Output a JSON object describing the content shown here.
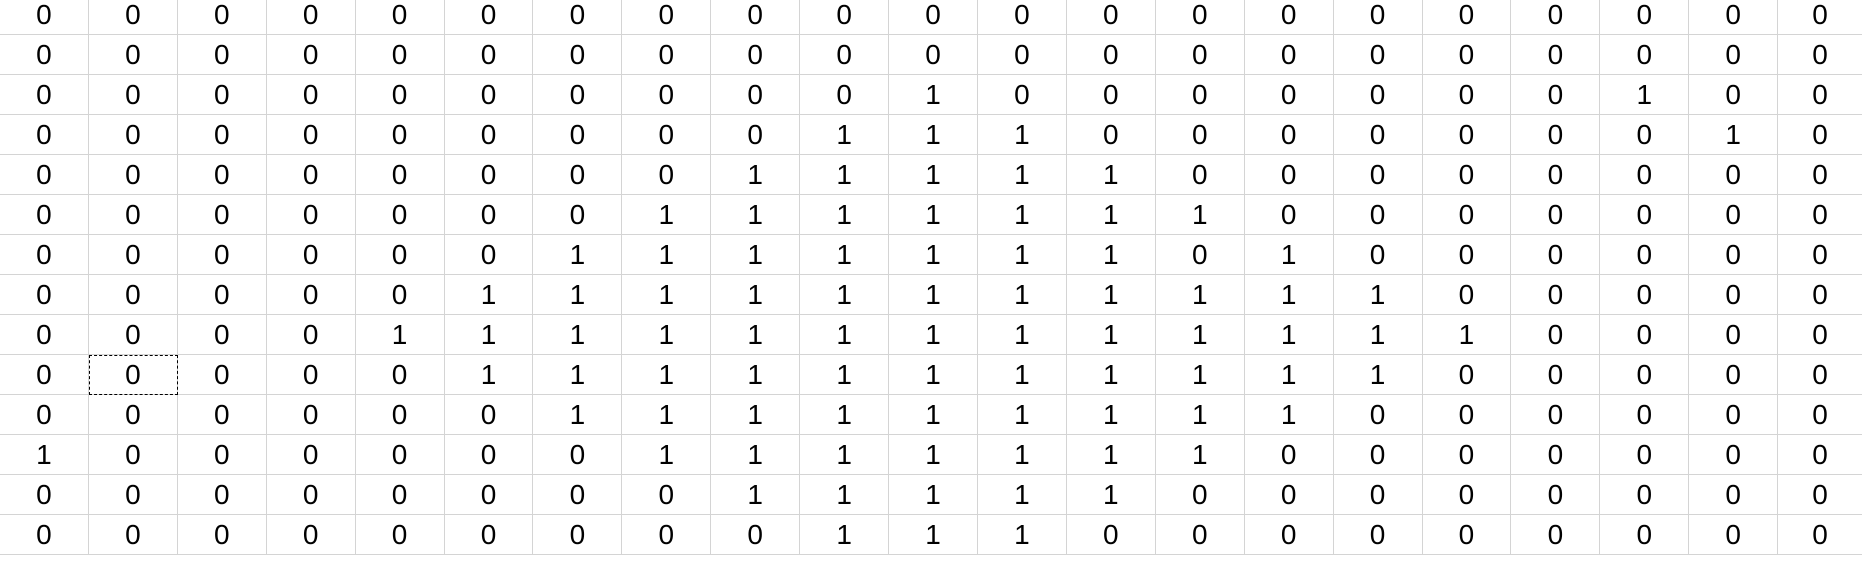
{
  "sheet": {
    "selected_cell": {
      "row": 9,
      "col": 1
    },
    "rows": [
      [
        "0",
        "0",
        "0",
        "0",
        "0",
        "0",
        "0",
        "0",
        "0",
        "0",
        "0",
        "0",
        "0",
        "0",
        "0",
        "0",
        "0",
        "0",
        "0",
        "0",
        "0"
      ],
      [
        "0",
        "0",
        "0",
        "0",
        "0",
        "0",
        "0",
        "0",
        "0",
        "0",
        "0",
        "0",
        "0",
        "0",
        "0",
        "0",
        "0",
        "0",
        "0",
        "0",
        "0"
      ],
      [
        "0",
        "0",
        "0",
        "0",
        "0",
        "0",
        "0",
        "0",
        "0",
        "0",
        "1",
        "0",
        "0",
        "0",
        "0",
        "0",
        "0",
        "0",
        "1",
        "0",
        "0"
      ],
      [
        "0",
        "0",
        "0",
        "0",
        "0",
        "0",
        "0",
        "0",
        "0",
        "1",
        "1",
        "1",
        "0",
        "0",
        "0",
        "0",
        "0",
        "0",
        "0",
        "1",
        "0"
      ],
      [
        "0",
        "0",
        "0",
        "0",
        "0",
        "0",
        "0",
        "0",
        "1",
        "1",
        "1",
        "1",
        "1",
        "0",
        "0",
        "0",
        "0",
        "0",
        "0",
        "0",
        "0"
      ],
      [
        "0",
        "0",
        "0",
        "0",
        "0",
        "0",
        "0",
        "1",
        "1",
        "1",
        "1",
        "1",
        "1",
        "1",
        "0",
        "0",
        "0",
        "0",
        "0",
        "0",
        "0"
      ],
      [
        "0",
        "0",
        "0",
        "0",
        "0",
        "0",
        "1",
        "1",
        "1",
        "1",
        "1",
        "1",
        "1",
        "0",
        "1",
        "0",
        "0",
        "0",
        "0",
        "0",
        "0"
      ],
      [
        "0",
        "0",
        "0",
        "0",
        "0",
        "1",
        "1",
        "1",
        "1",
        "1",
        "1",
        "1",
        "1",
        "1",
        "1",
        "1",
        "0",
        "0",
        "0",
        "0",
        "0"
      ],
      [
        "0",
        "0",
        "0",
        "0",
        "1",
        "1",
        "1",
        "1",
        "1",
        "1",
        "1",
        "1",
        "1",
        "1",
        "1",
        "1",
        "1",
        "0",
        "0",
        "0",
        "0"
      ],
      [
        "0",
        "0",
        "0",
        "0",
        "0",
        "1",
        "1",
        "1",
        "1",
        "1",
        "1",
        "1",
        "1",
        "1",
        "1",
        "1",
        "0",
        "0",
        "0",
        "0",
        "0"
      ],
      [
        "0",
        "0",
        "0",
        "0",
        "0",
        "0",
        "1",
        "1",
        "1",
        "1",
        "1",
        "1",
        "1",
        "1",
        "1",
        "0",
        "0",
        "0",
        "0",
        "0",
        "0"
      ],
      [
        "1",
        "0",
        "0",
        "0",
        "0",
        "0",
        "0",
        "1",
        "1",
        "1",
        "1",
        "1",
        "1",
        "1",
        "0",
        "0",
        "0",
        "0",
        "0",
        "0",
        "0"
      ],
      [
        "0",
        "0",
        "0",
        "0",
        "0",
        "0",
        "0",
        "0",
        "1",
        "1",
        "1",
        "1",
        "1",
        "0",
        "0",
        "0",
        "0",
        "0",
        "0",
        "0",
        "0"
      ],
      [
        "0",
        "0",
        "0",
        "0",
        "0",
        "0",
        "0",
        "0",
        "0",
        "1",
        "1",
        "1",
        "0",
        "0",
        "0",
        "0",
        "0",
        "0",
        "0",
        "0",
        "0"
      ]
    ]
  }
}
